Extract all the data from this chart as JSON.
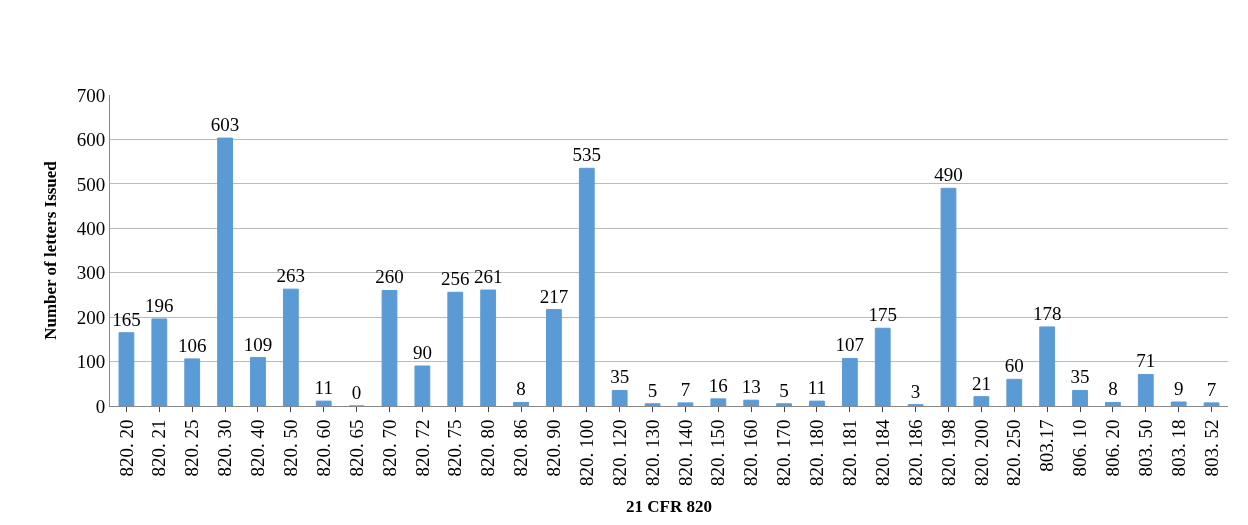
{
  "chart_data": {
    "type": "bar",
    "xlabel": "21 CFR 820",
    "ylabel": "Number of letters Issued",
    "categories": [
      "820. 20",
      "820. 21",
      "820. 25",
      "820. 30",
      "820. 40",
      "820. 50",
      "820. 60",
      "820. 65",
      "820. 70",
      "820. 72",
      "820. 75",
      "820. 80",
      "820. 86",
      "820. 90",
      "820. 100",
      "820. 120",
      "820. 130",
      "820. 140",
      "820. 150",
      "820. 160",
      "820. 170",
      "820. 180",
      "820. 181",
      "820. 184",
      "820. 186",
      "820. 198",
      "820. 200",
      "820. 250",
      "803.17",
      "806. 10",
      "806. 20",
      "803. 50",
      "803. 18",
      "803. 52"
    ],
    "values": [
      165,
      196,
      106,
      603,
      109,
      263,
      11,
      0,
      260,
      90,
      256,
      261,
      8,
      217,
      535,
      35,
      5,
      7,
      16,
      13,
      5,
      11,
      107,
      175,
      3,
      490,
      21,
      60,
      178,
      35,
      8,
      71,
      9,
      7
    ],
    "color": "#5b9bd5",
    "ylim": [
      0,
      700
    ],
    "yticks": [
      0,
      100,
      200,
      300,
      400,
      500,
      600,
      700
    ],
    "grid": "y",
    "data_labels": true
  }
}
